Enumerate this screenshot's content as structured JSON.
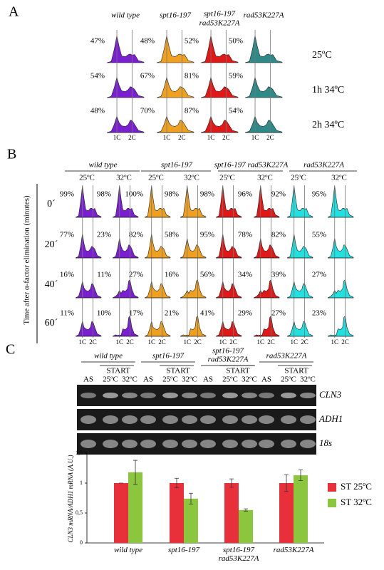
{
  "panel_a": {
    "label": "A",
    "strains": [
      [
        "wild type"
      ],
      [
        "spt16-197"
      ],
      [
        "spt16-197",
        "rad53K227A"
      ],
      [
        "rad53K227A"
      ]
    ],
    "conditions": [
      "25ºC",
      "1h 34ºC",
      "2h 34ºC"
    ],
    "percentages": [
      [
        "47%",
        "48%",
        "52%",
        "50%"
      ],
      [
        "54%",
        "67%",
        "81%",
        "59%"
      ],
      [
        "48%",
        "70%",
        "87%",
        "54%"
      ]
    ],
    "dna_labels": [
      "1C",
      "2C"
    ]
  },
  "panel_b": {
    "label": "B",
    "y_title": "Time after α-factor elimination (minutes)",
    "strains": [
      "wild type",
      "spt16-197",
      "spt16-197 rad53K227A",
      "rad53K227A"
    ],
    "temperatures": [
      "25ºC",
      "32ºC"
    ],
    "times": [
      "0´",
      "20´",
      "40´",
      "60´"
    ],
    "percentages": [
      [
        [
          "99%",
          "98%"
        ],
        [
          "100%",
          "98%"
        ],
        [
          "98%",
          "96%"
        ],
        [
          "92%",
          "95%"
        ]
      ],
      [
        [
          "77%",
          "23%"
        ],
        [
          "82%",
          "58%"
        ],
        [
          "95%",
          "78%"
        ],
        [
          "82%",
          "55%"
        ]
      ],
      [
        [
          "16%",
          "11%"
        ],
        [
          "27%",
          "16%"
        ],
        [
          "56%",
          "34%"
        ],
        [
          "39%",
          "27%"
        ]
      ],
      [
        [
          "11%",
          "10%"
        ],
        [
          "17%",
          "21%"
        ],
        [
          "41%",
          "29%"
        ],
        [
          "27%",
          "23%"
        ]
      ]
    ],
    "dna_labels": [
      "1C",
      "2C"
    ]
  },
  "panel_c": {
    "label": "C",
    "strains": [
      [
        "wild type"
      ],
      [
        "spt16-197"
      ],
      [
        "spt16-197",
        "rad53K227A"
      ],
      [
        "rad53K227A"
      ]
    ],
    "start": "START",
    "lanes": [
      "AS",
      "25ºC",
      "32ºC"
    ],
    "genes": [
      "CLN3",
      "ADH1",
      "18s"
    ]
  },
  "chart_data": {
    "type": "bar",
    "y_title": "CLN3 mRNA/ADH1 mRNA (A.U.)",
    "categories": [
      "wild type",
      "spt16-197",
      "spt16-197 rad53K227A",
      "rad53K227A"
    ],
    "series": [
      {
        "name": "ST 25ºC",
        "color": "#e8303a",
        "values": [
          1,
          1,
          1,
          1
        ],
        "errors": [
          0,
          0.08,
          0.07,
          0.14
        ]
      },
      {
        "name": "ST 32ºC",
        "color": "#8cc63f",
        "values": [
          1.18,
          0.74,
          0.55,
          1.13
        ],
        "errors": [
          0.2,
          0.09,
          0.02,
          0.09
        ]
      }
    ],
    "ylim": [
      0,
      1.5
    ],
    "yticks": [
      0,
      {
        "value": 0.5,
        "label": "0,5"
      },
      1,
      {
        "value": 1.5,
        "label": "1,5"
      }
    ]
  }
}
